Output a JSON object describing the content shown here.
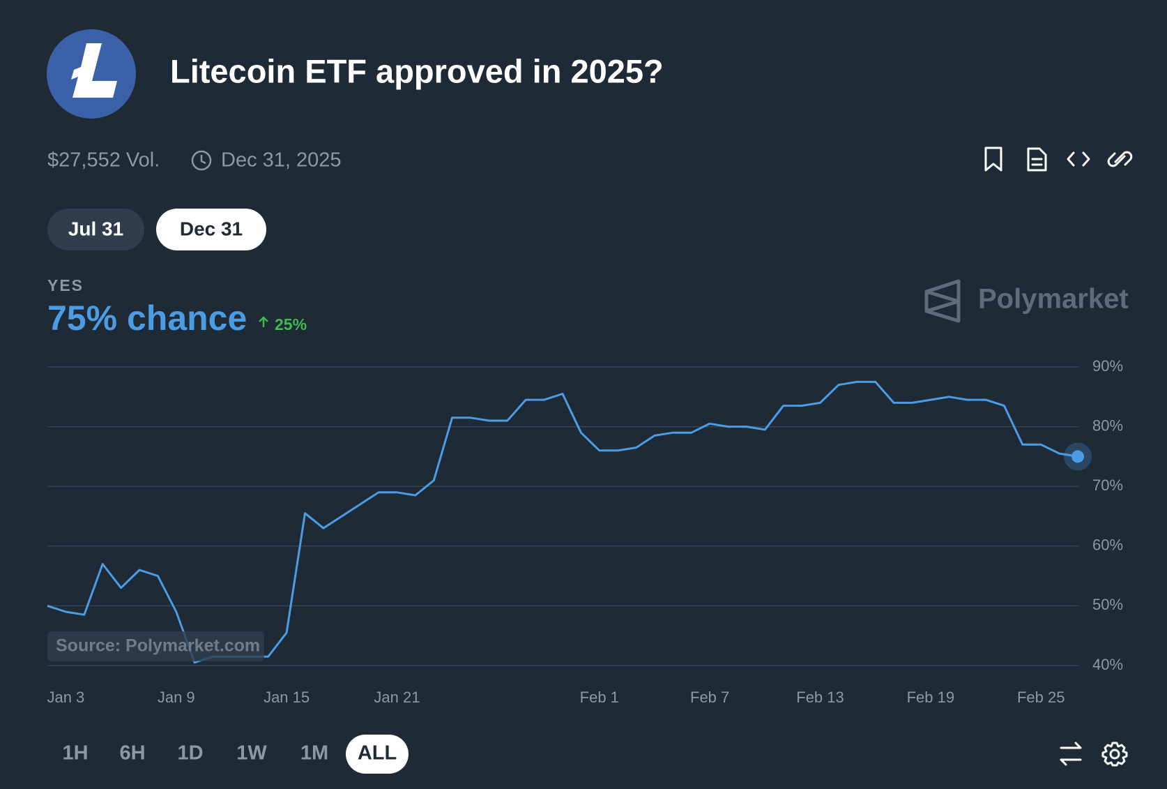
{
  "header": {
    "title": "Litecoin ETF approved in 2025?",
    "volume": "$27,552 Vol.",
    "end_date": "Dec 31, 2025"
  },
  "tabs": [
    "Jul 31",
    "Dec 31"
  ],
  "active_tab": "Dec 31",
  "outcome": {
    "label": "YES",
    "chance": "75% chance",
    "change": "25%"
  },
  "brand": "Polymarket",
  "source": "Source: Polymarket.com",
  "chart_data": {
    "type": "line",
    "categories": [
      null,
      "Jan 3",
      null,
      null,
      null,
      null,
      null,
      "Jan 9",
      null,
      null,
      null,
      null,
      null,
      "Jan 15",
      null,
      null,
      null,
      null,
      null,
      "Jan 21",
      null,
      null,
      null,
      null,
      null,
      null,
      null,
      null,
      null,
      null,
      "Feb 1",
      null,
      null,
      null,
      null,
      null,
      "Feb 7",
      null,
      null,
      null,
      null,
      null,
      "Feb 13",
      null,
      null,
      null,
      null,
      null,
      "Feb 19",
      null,
      null,
      null,
      null,
      null,
      "Feb 25",
      null,
      null
    ],
    "series": [
      {
        "name": "YES",
        "color": "#4b9ce3",
        "values": [
          50,
          49,
          48.5,
          57,
          53,
          56,
          55,
          49,
          40.5,
          41.5,
          41.5,
          41.5,
          41.5,
          45.5,
          65.5,
          63,
          65,
          67,
          69,
          69,
          68.5,
          71,
          81.5,
          81.5,
          81,
          81,
          84.5,
          84.5,
          85.5,
          79,
          76,
          76,
          76.5,
          78.5,
          79,
          79,
          80.5,
          80,
          80,
          79.5,
          83.5,
          83.5,
          84,
          87,
          87.5,
          87.5,
          84,
          84,
          84.5,
          85,
          84.5,
          84.5,
          83.5,
          77,
          77,
          75.5,
          75
        ]
      }
    ],
    "ylim": [
      40,
      90
    ],
    "yticks": [
      {
        "value": 40,
        "label": "40%"
      },
      {
        "value": 50,
        "label": "50%"
      },
      {
        "value": 60,
        "label": "60%"
      },
      {
        "value": 70,
        "label": "70%"
      },
      {
        "value": 80,
        "label": "80%"
      },
      {
        "value": 90,
        "label": "90%"
      }
    ],
    "grid": true
  },
  "ranges": [
    "1H",
    "6H",
    "1D",
    "1W",
    "1M",
    "ALL"
  ],
  "active_range": "ALL"
}
